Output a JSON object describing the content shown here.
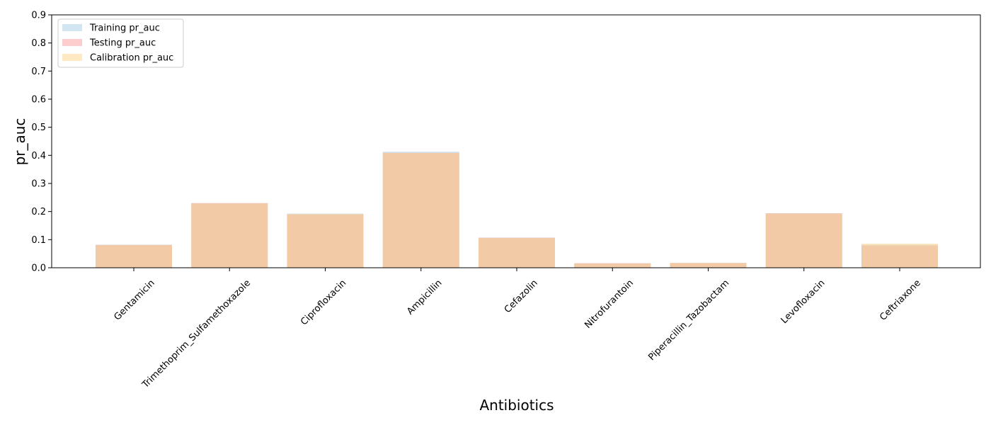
{
  "chart_data": {
    "type": "bar",
    "categories": [
      "Gentamicin",
      "Trimethoprim_Sulfamethoxazole",
      "Ciprofloxacin",
      "Ampicillin",
      "Cefazolin",
      "Nitrofurantoin",
      "Piperacillin_Tazobactam",
      "Levofloxacin",
      "Ceftriaxone"
    ],
    "series": [
      {
        "name": "Training pr_auc",
        "color": "#a6cee3",
        "values": [
          0.082,
          0.23,
          0.193,
          0.413,
          0.107,
          0.016,
          0.017,
          0.193,
          0.082
        ]
      },
      {
        "name": "Testing pr_auc",
        "color": "#fb9a99",
        "values": [
          0.081,
          0.23,
          0.19,
          0.409,
          0.107,
          0.016,
          0.017,
          0.194,
          0.079
        ]
      },
      {
        "name": "Calibration pr_auc",
        "color": "#fdd486",
        "values": [
          0.08,
          0.229,
          0.191,
          0.408,
          0.106,
          0.015,
          0.017,
          0.192,
          0.086
        ]
      }
    ],
    "title": "",
    "xlabel": "Antibiotics",
    "ylabel": "pr_auc",
    "ylim": [
      0,
      0.9
    ],
    "yticks": [
      "0.0",
      "0.1",
      "0.2",
      "0.3",
      "0.4",
      "0.5",
      "0.6",
      "0.7",
      "0.8",
      "0.9"
    ],
    "grid": false,
    "legend_position": "top-left",
    "bar_opacity": 0.5
  }
}
